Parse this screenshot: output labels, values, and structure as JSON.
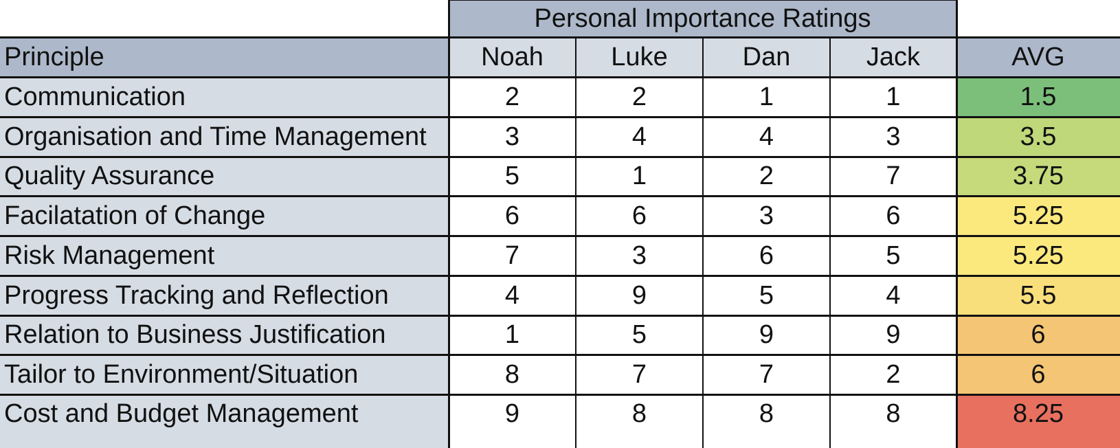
{
  "chart_data": {
    "type": "table",
    "title": "Personal Importance Ratings",
    "row_header_label": "Principle",
    "columns": [
      "Noah",
      "Luke",
      "Dan",
      "Jack"
    ],
    "avg_label": "AVG",
    "rows": [
      {
        "principle": "Communication",
        "values": [
          2,
          2,
          1,
          1
        ],
        "avg": "1.5",
        "avg_color": "#7bbf7a"
      },
      {
        "principle": "Organisation and Time Management",
        "values": [
          3,
          4,
          4,
          3
        ],
        "avg": "3.5",
        "avg_color": "#bfd87a"
      },
      {
        "principle": "Quality Assurance",
        "values": [
          5,
          1,
          2,
          7
        ],
        "avg": "3.75",
        "avg_color": "#c6da7b"
      },
      {
        "principle": "Facilatation of Change",
        "values": [
          6,
          6,
          3,
          6
        ],
        "avg": "5.25",
        "avg_color": "#fbe97e"
      },
      {
        "principle": "Risk Management",
        "values": [
          7,
          3,
          6,
          5
        ],
        "avg": "5.25",
        "avg_color": "#fbe97e"
      },
      {
        "principle": "Progress Tracking and Reflection",
        "values": [
          4,
          9,
          5,
          4
        ],
        "avg": "5.5",
        "avg_color": "#f9df7c"
      },
      {
        "principle": "Relation to Business Justification",
        "values": [
          1,
          5,
          9,
          9
        ],
        "avg": "6",
        "avg_color": "#f4c574"
      },
      {
        "principle": "Tailor to Environment/Situation",
        "values": [
          8,
          7,
          7,
          2
        ],
        "avg": "6",
        "avg_color": "#f4c574"
      },
      {
        "principle": "Cost and Budget Management",
        "values": [
          9,
          8,
          8,
          8
        ],
        "avg": "8.25",
        "avg_color": "#e8705f"
      }
    ]
  },
  "colors": {
    "header_fill": "#adb9ca",
    "label_fill": "#d6dce4",
    "name_header_fill": "#d6dce4",
    "grid_line": "#111111"
  }
}
